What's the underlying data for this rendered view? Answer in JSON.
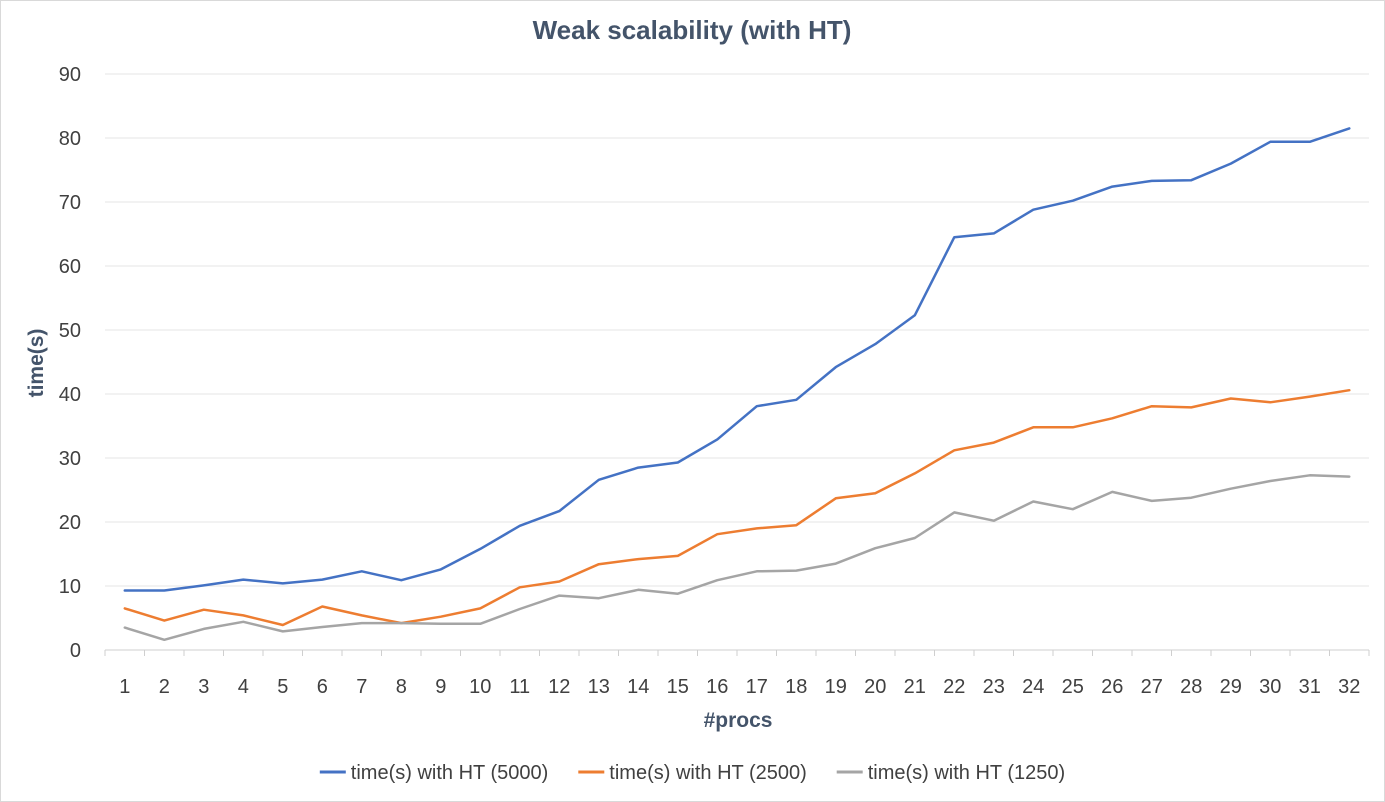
{
  "chart_data": {
    "type": "line",
    "title": "Weak scalability (with HT)",
    "xlabel": "#procs",
    "ylabel": "time(s)",
    "ylim": [
      0,
      90
    ],
    "yticks": [
      0,
      10,
      20,
      30,
      40,
      50,
      60,
      70,
      80,
      90
    ],
    "grid": "horizontal",
    "legend_position": "bottom",
    "categories": [
      "1",
      "2",
      "3",
      "4",
      "5",
      "6",
      "7",
      "8",
      "9",
      "10",
      "11",
      "12",
      "13",
      "14",
      "15",
      "16",
      "17",
      "18",
      "19",
      "20",
      "21",
      "22",
      "23",
      "24",
      "25",
      "26",
      "27",
      "28",
      "29",
      "30",
      "31",
      "32"
    ],
    "series": [
      {
        "name": "time(s) with HT (5000)",
        "color": "#4472c4",
        "values": [
          9.3,
          9.3,
          10.1,
          11.0,
          10.4,
          11.0,
          12.3,
          10.9,
          12.6,
          15.8,
          19.4,
          21.7,
          26.6,
          28.5,
          29.3,
          32.9,
          38.1,
          39.1,
          44.2,
          47.8,
          52.3,
          64.5,
          65.1,
          68.8,
          70.2,
          72.4,
          73.3,
          73.4,
          76.0,
          79.4,
          79.4,
          81.5
        ]
      },
      {
        "name": "time(s) with HT (2500)",
        "color": "#ed7d31",
        "values": [
          6.5,
          4.6,
          6.3,
          5.4,
          3.9,
          6.8,
          5.4,
          4.2,
          5.2,
          6.5,
          9.8,
          10.7,
          13.4,
          14.2,
          14.7,
          18.1,
          19.0,
          19.5,
          23.7,
          24.5,
          27.6,
          31.2,
          32.4,
          34.8,
          34.8,
          36.2,
          38.1,
          37.9,
          39.3,
          38.7,
          39.6,
          40.6
        ]
      },
      {
        "name": "time(s) with HT (1250)",
        "color": "#a5a5a5",
        "values": [
          3.5,
          1.6,
          3.3,
          4.4,
          2.9,
          3.6,
          4.2,
          4.2,
          4.1,
          4.1,
          6.4,
          8.5,
          8.1,
          9.4,
          8.8,
          10.9,
          12.3,
          12.4,
          13.5,
          15.9,
          17.5,
          21.5,
          20.2,
          23.2,
          22.0,
          24.7,
          23.3,
          23.8,
          25.2,
          26.4,
          27.3,
          27.1
        ]
      }
    ]
  }
}
